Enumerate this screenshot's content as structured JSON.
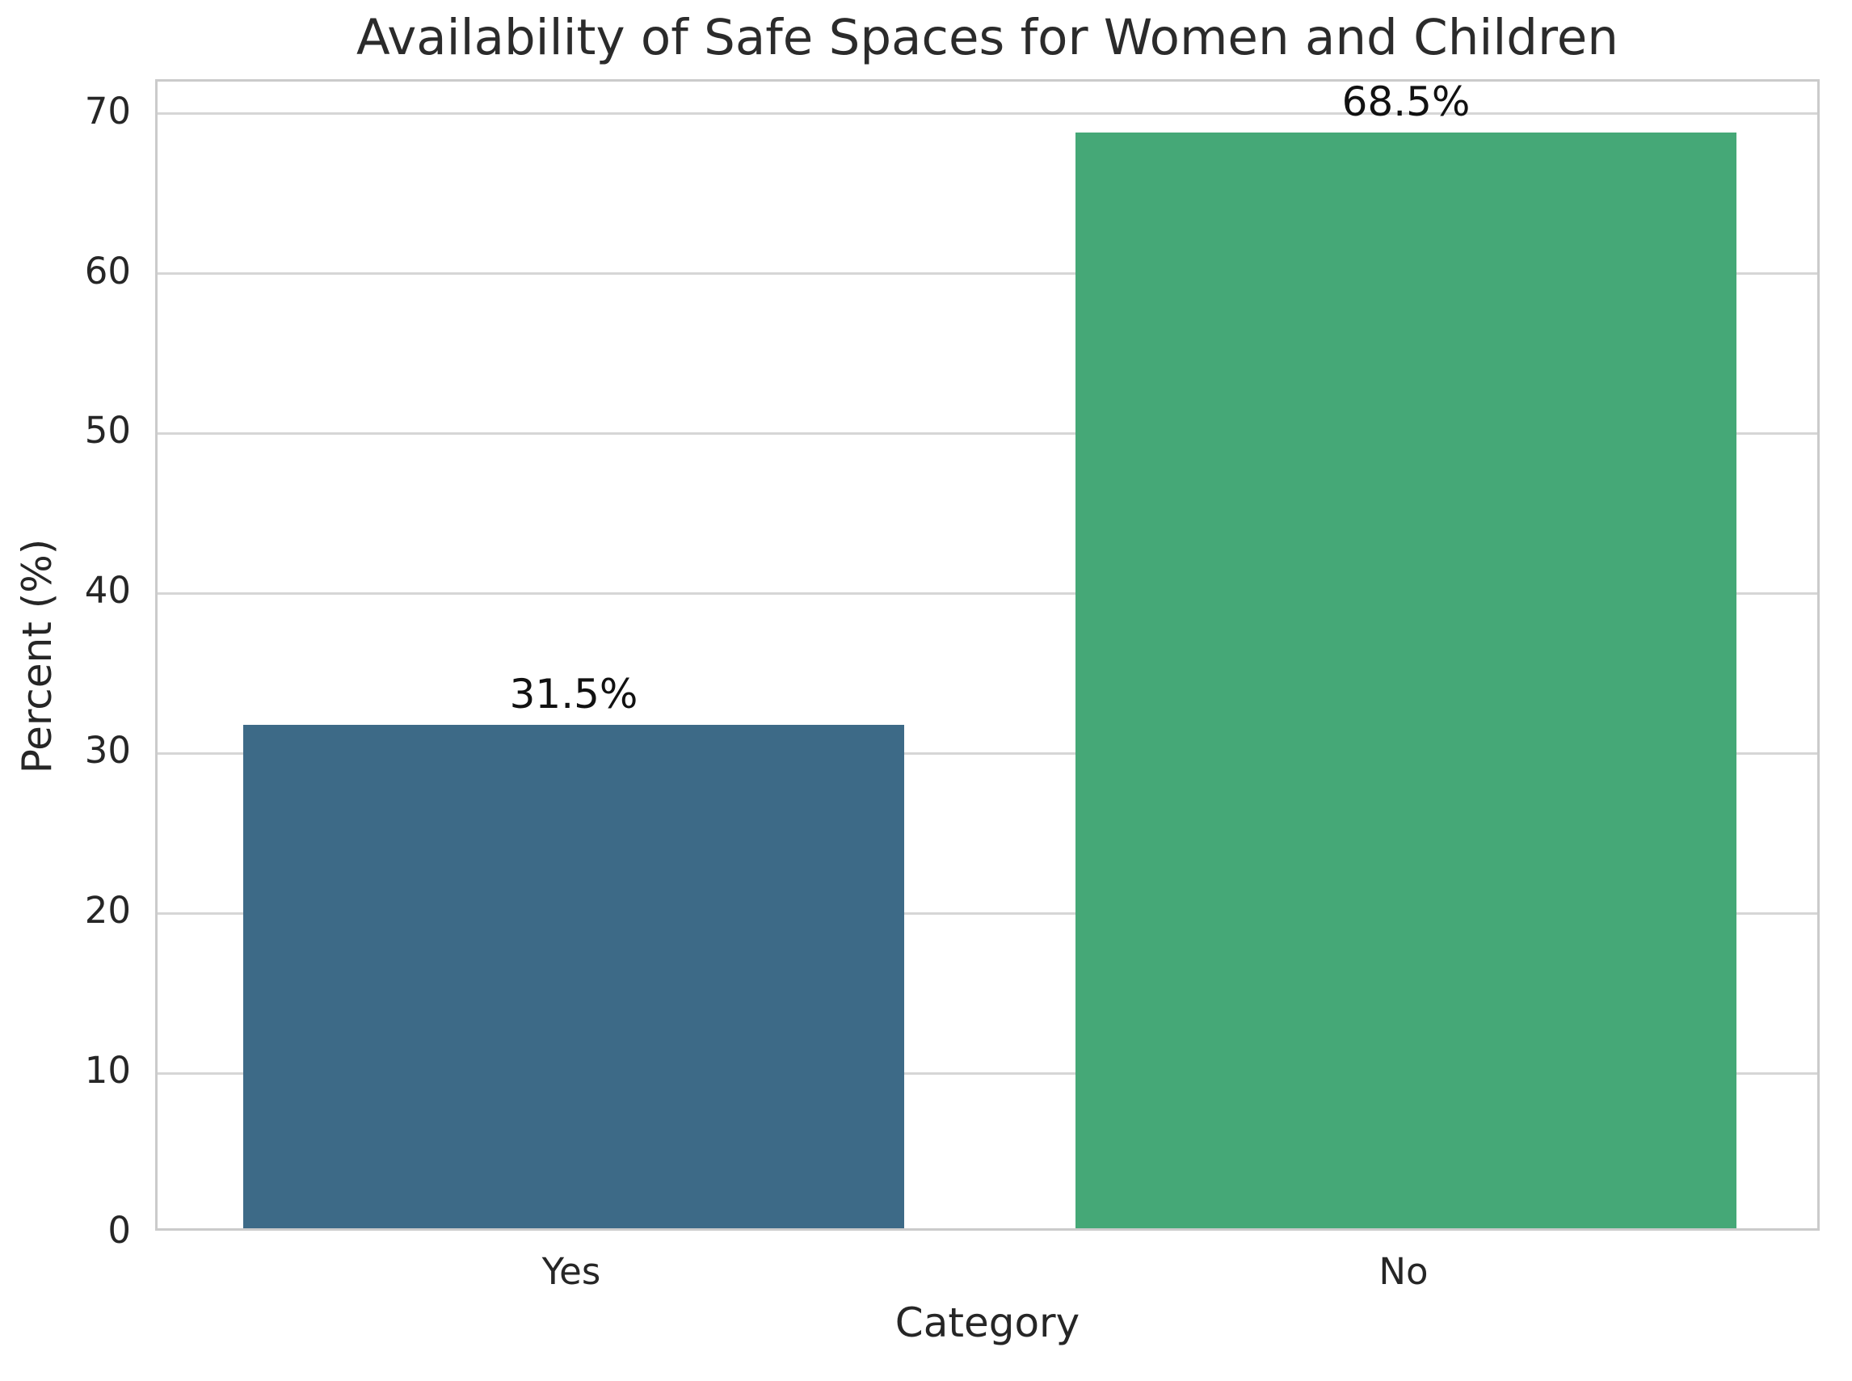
{
  "chart_data": {
    "type": "bar",
    "title": "Availability of Safe Spaces for Women and Children",
    "xlabel": "Category",
    "ylabel": "Percent (%)",
    "categories": [
      "Yes",
      "No"
    ],
    "values": [
      31.5,
      68.5
    ],
    "value_labels": [
      "31.5%",
      "68.5%"
    ],
    "bar_colors": [
      "#3d6a87",
      "#45a877"
    ],
    "yticks": [
      0,
      10,
      20,
      30,
      40,
      50,
      60,
      70
    ],
    "ylim": [
      0,
      72
    ],
    "grid": "horizontal gridlines only",
    "legend": "none",
    "grid_color": "#d6d6d6",
    "spine_color": "#cbcbcb",
    "text_color": "#262626",
    "background_color": "#ffffff"
  }
}
